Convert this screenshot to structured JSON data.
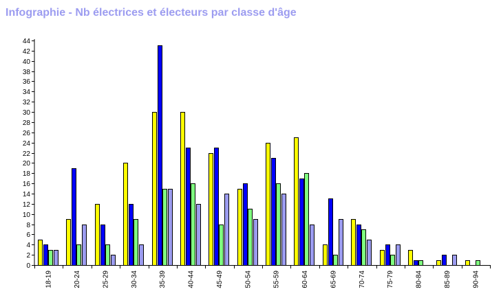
{
  "chart_data": {
    "type": "bar",
    "title": "Infographie - Nb électrices et électeurs par classe d'âge",
    "xlabel": "",
    "ylabel": "",
    "ylim": [
      0,
      44
    ],
    "yticks": [
      0,
      2,
      4,
      6,
      8,
      10,
      12,
      14,
      16,
      18,
      20,
      22,
      24,
      26,
      28,
      30,
      32,
      34,
      36,
      38,
      40,
      42,
      44
    ],
    "grid": false,
    "legend": "none",
    "categories": [
      "18-19",
      "20-24",
      "25-29",
      "30-34",
      "35-39",
      "40-44",
      "45-49",
      "50-54",
      "55-59",
      "60-64",
      "65-69",
      "70-74",
      "75-79",
      "80-84",
      "85-89",
      "90-94"
    ],
    "series": [
      {
        "color": "#ffff00",
        "values": [
          5,
          9,
          12,
          20,
          30,
          30,
          22,
          15,
          24,
          25,
          4,
          9,
          3,
          3,
          1,
          1
        ]
      },
      {
        "color": "#0000ff",
        "values": [
          4,
          19,
          8,
          12,
          43,
          23,
          23,
          16,
          21,
          17,
          13,
          8,
          4,
          1,
          2,
          0
        ]
      },
      {
        "color": "#80ff80",
        "values": [
          3,
          4,
          4,
          9,
          15,
          16,
          8,
          11,
          16,
          18,
          2,
          7,
          2,
          1,
          0,
          1
        ]
      },
      {
        "color": "#9c9cf0",
        "values": [
          3,
          8,
          2,
          4,
          15,
          12,
          14,
          9,
          14,
          8,
          9,
          5,
          4,
          0,
          2,
          0
        ]
      }
    ]
  }
}
